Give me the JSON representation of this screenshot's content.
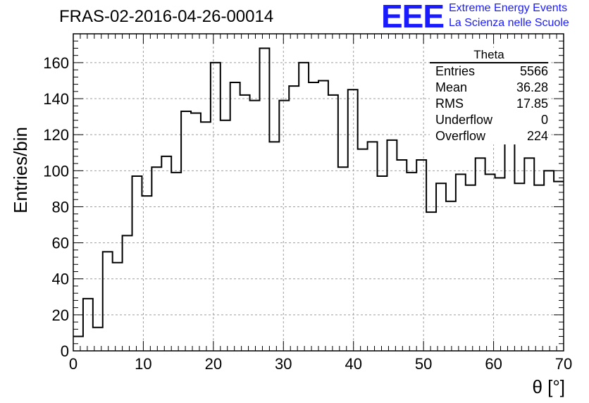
{
  "header": {
    "run_title": "FRAS-02-2016-04-26-00014",
    "logo_text": "EEE",
    "logo_line1": "Extreme Energy Events",
    "logo_line2": "La Scienza nelle Scuole"
  },
  "stats_box": {
    "title": "Theta",
    "rows": [
      {
        "label": "Entries",
        "value": "5566"
      },
      {
        "label": "Mean",
        "value": "36.28"
      },
      {
        "label": "RMS",
        "value": "17.85"
      },
      {
        "label": "Underflow",
        "value": "0"
      },
      {
        "label": "Overflow",
        "value": "224"
      }
    ]
  },
  "colors": {
    "line": "#000000",
    "grid": "#9e9e9e",
    "logo": "#1a1aff"
  },
  "chart_data": {
    "type": "bar",
    "histogram": true,
    "xlabel": "θ [°]",
    "ylabel": "Entries/bin",
    "xlim": [
      0,
      70
    ],
    "ylim": [
      0,
      176
    ],
    "bin_width": 1.4,
    "x_ticks": [
      0,
      10,
      20,
      30,
      40,
      50,
      60,
      70
    ],
    "y_ticks": [
      0,
      20,
      40,
      60,
      80,
      100,
      120,
      140,
      160
    ],
    "grid": true,
    "values": [
      8,
      29,
      13,
      55,
      49,
      64,
      97,
      86,
      102,
      108,
      99,
      133,
      132,
      127,
      160,
      128,
      149,
      142,
      139,
      168,
      116,
      139,
      147,
      160,
      149,
      150,
      142,
      102,
      145,
      112,
      116,
      97,
      117,
      106,
      99,
      106,
      77,
      93,
      83,
      98,
      92,
      107,
      98,
      96,
      121,
      93,
      107,
      92,
      100,
      94
    ]
  }
}
